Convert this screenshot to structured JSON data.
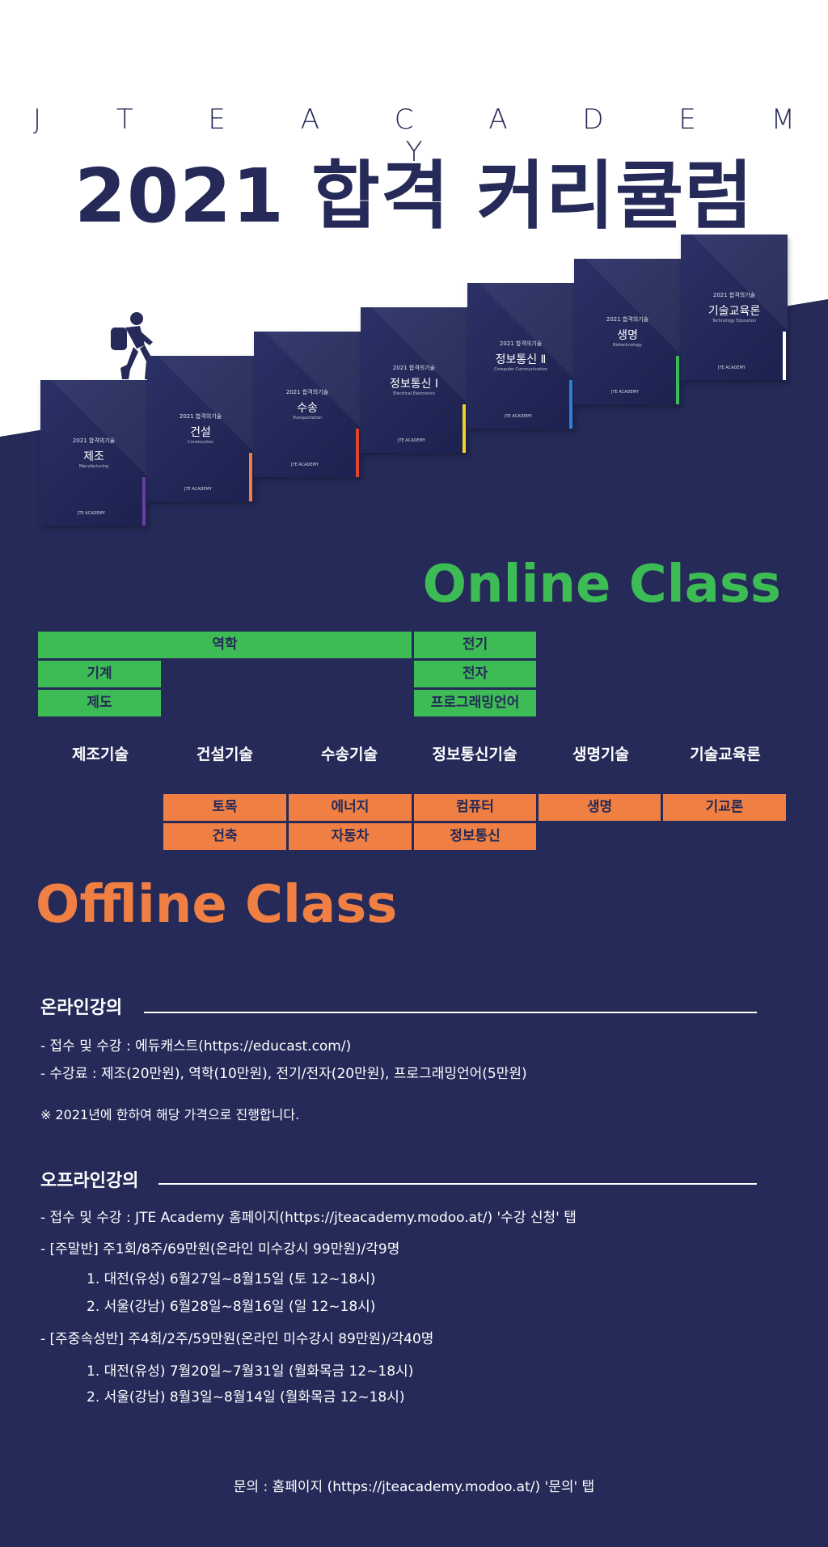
{
  "header": {
    "brand": "J T E   A C A D E M Y",
    "title": "2021 합격 커리큘럼"
  },
  "books": [
    {
      "year": "2021 합격의기술",
      "name": "제조",
      "en": "Manufacturing",
      "logo": "JTE ACADEMY",
      "stripe_color": "#6a3fa0"
    },
    {
      "year": "2021 합격의기술",
      "name": "건설",
      "en": "Construction",
      "logo": "JTE ACADEMY",
      "stripe_color": "#f07f43"
    },
    {
      "year": "2021 합격의기술",
      "name": "수송",
      "en": "Transportation",
      "logo": "JTE ACADEMY",
      "stripe_color": "#e0452b"
    },
    {
      "year": "2021 합격의기술",
      "name": "정보통신 Ⅰ",
      "en": "Electrical Electronics",
      "logo": "JTE ACADEMY",
      "stripe_color": "#f4d21e"
    },
    {
      "year": "2021 합격의기술",
      "name": "정보통신 Ⅱ",
      "en": "Computer Communication",
      "logo": "JTE ACADEMY",
      "stripe_color": "#2f7fd6"
    },
    {
      "year": "2021 합격의기술",
      "name": "생명",
      "en": "Biotechnology",
      "logo": "JTE ACADEMY",
      "stripe_color": "#3dbb55"
    },
    {
      "year": "2021 합격의기술",
      "name": "기술교육론",
      "en": "Technology Education",
      "logo": "JTE ACADEMY",
      "stripe_color": "#ffffff"
    }
  ],
  "online": {
    "title": "Online Class",
    "subjects": {
      "mechanics": "역학",
      "electric": "전기",
      "machine": "기계",
      "electronics": "전자",
      "drafting": "제도",
      "programming": "프로그래밍언어"
    }
  },
  "categories": [
    "제조기술",
    "건설기술",
    "수송기술",
    "정보통신기술",
    "생명기술",
    "기술교육론"
  ],
  "offline": {
    "title": "Offline Class",
    "subjects": {
      "civil": "토목",
      "energy": "에너지",
      "computer": "컴퓨터",
      "life": "생명",
      "theory": "기교론",
      "architecture": "건축",
      "automobile": "자동차",
      "infocomm": "정보통신"
    }
  },
  "online_lecture": {
    "heading": "온라인강의",
    "line1": "- 접수 및 수강 : 에듀캐스트(https://educast.com/)",
    "line2": "- 수강료 : 제조(20만원), 역학(10만원), 전기/전자(20만원), 프로그래밍언어(5만원)",
    "note": "※ 2021년에 한하여 해당 가격으로 진행합니다."
  },
  "offline_lecture": {
    "heading": "오프라인강의",
    "line1": "- 접수 및 수강 : JTE Academy 홈페이지(https://jteacademy.modoo.at/) '수강 신청' 탭",
    "weekend": "- [주말반] 주1회/8주/69만원(온라인 미수강시 99만원)/각9명",
    "weekend_1": "1. 대전(유성) 6월27일~8월15일 (토 12~18시)",
    "weekend_2": "2. 서울(강남) 6월28일~8월16일 (일 12~18시)",
    "intensive": "- [주중속성반] 주4회/2주/59만원(온라인 미수강시 89만원)/각40명",
    "intensive_1": "1. 대전(유성) 7월20일~7월31일 (월화목금 12~18시)",
    "intensive_2": "2. 서울(강남) 8월3일~8월14일 (월화목금 12~18시)"
  },
  "contact": "문의 : 홈페이지 (https://jteacademy.modoo.at/) '문의' 탭",
  "colors": {
    "navy": "#252a58",
    "green": "#3dbb55",
    "orange": "#f07f43"
  }
}
